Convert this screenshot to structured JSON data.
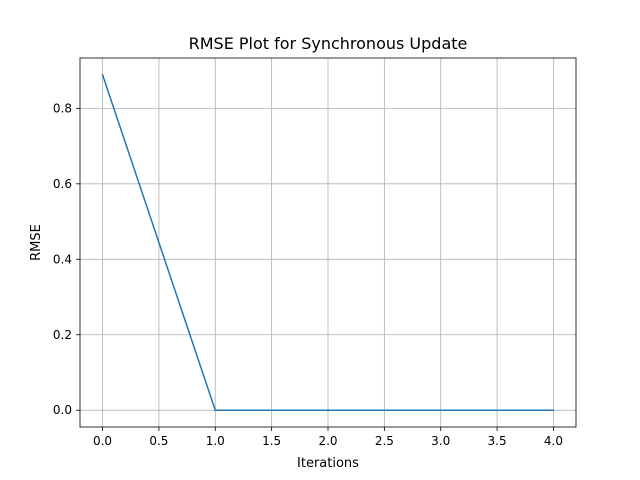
{
  "chart_data": {
    "type": "line",
    "title": "RMSE Plot for Synchronous Update",
    "xlabel": "Iterations",
    "ylabel": "RMSE",
    "xlim": [
      -0.2,
      4.2
    ],
    "ylim": [
      -0.0445,
      0.9335
    ],
    "xticks": [
      0.0,
      0.5,
      1.0,
      1.5,
      2.0,
      2.5,
      3.0,
      3.5,
      4.0
    ],
    "xtick_labels": [
      "0.0",
      "0.5",
      "1.0",
      "1.5",
      "2.0",
      "2.5",
      "3.0",
      "3.5",
      "4.0"
    ],
    "yticks": [
      0.0,
      0.2,
      0.4,
      0.6,
      0.8
    ],
    "ytick_labels": [
      "0.0",
      "0.2",
      "0.4",
      "0.6",
      "0.8"
    ],
    "grid": true,
    "series": [
      {
        "color": "#1f77b4",
        "x": [
          0,
          1,
          2,
          3,
          4
        ],
        "y": [
          0.889,
          0.0,
          0.0,
          0.0,
          0.0
        ]
      }
    ]
  }
}
